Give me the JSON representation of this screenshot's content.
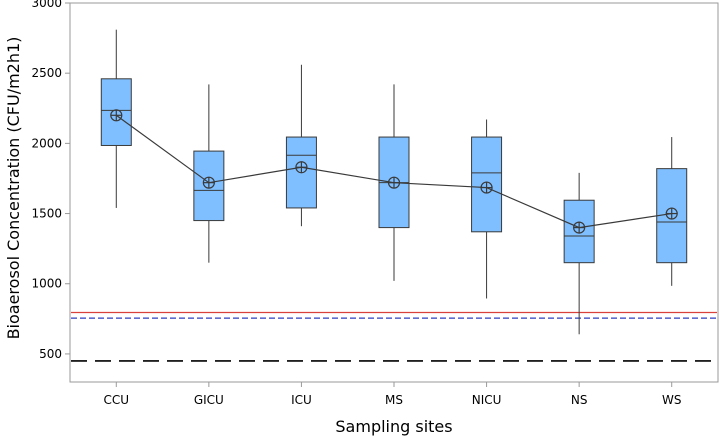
{
  "chart_data": {
    "type": "box",
    "title": "",
    "xlabel": "Sampling sites",
    "ylabel": "Bioaerosol Concentration (CFU/m2h1)",
    "ylim": [
      300,
      3000
    ],
    "yticks": [
      500,
      1000,
      1500,
      2000,
      2500,
      3000
    ],
    "categories": [
      "CCU",
      "GICU",
      "ICU",
      "MS",
      "NICU",
      "NS",
      "WS"
    ],
    "boxes": [
      {
        "min": 1540,
        "q1": 1985,
        "median": 2235,
        "q3": 2460,
        "max": 2810,
        "mean": 2200
      },
      {
        "min": 1150,
        "q1": 1450,
        "median": 1665,
        "q3": 1945,
        "max": 2420,
        "mean": 1720
      },
      {
        "min": 1410,
        "q1": 1540,
        "median": 1915,
        "q3": 2045,
        "max": 2560,
        "mean": 1830
      },
      {
        "min": 1020,
        "q1": 1400,
        "median": 1720,
        "q3": 2045,
        "max": 2420,
        "mean": 1720
      },
      {
        "min": 895,
        "q1": 1370,
        "median": 1790,
        "q3": 2045,
        "max": 2170,
        "mean": 1685
      },
      {
        "min": 640,
        "q1": 1150,
        "median": 1340,
        "q3": 1595,
        "max": 1790,
        "mean": 1400
      },
      {
        "min": 985,
        "q1": 1150,
        "median": 1440,
        "q3": 1820,
        "max": 2045,
        "mean": 1500
      }
    ],
    "reference_lines": [
      {
        "value": 795,
        "color": "#d9423a",
        "style": "solid"
      },
      {
        "value": 755,
        "color": "#2f3fbf",
        "style": "dashed"
      },
      {
        "value": 450,
        "color": "#000000",
        "style": "long-dashed"
      }
    ],
    "colors": {
      "box_fill": "#7fbfff",
      "box_stroke": "#3a3a3a",
      "mean_line": "#3a3a3a",
      "frame": "#9a9a9a"
    }
  }
}
